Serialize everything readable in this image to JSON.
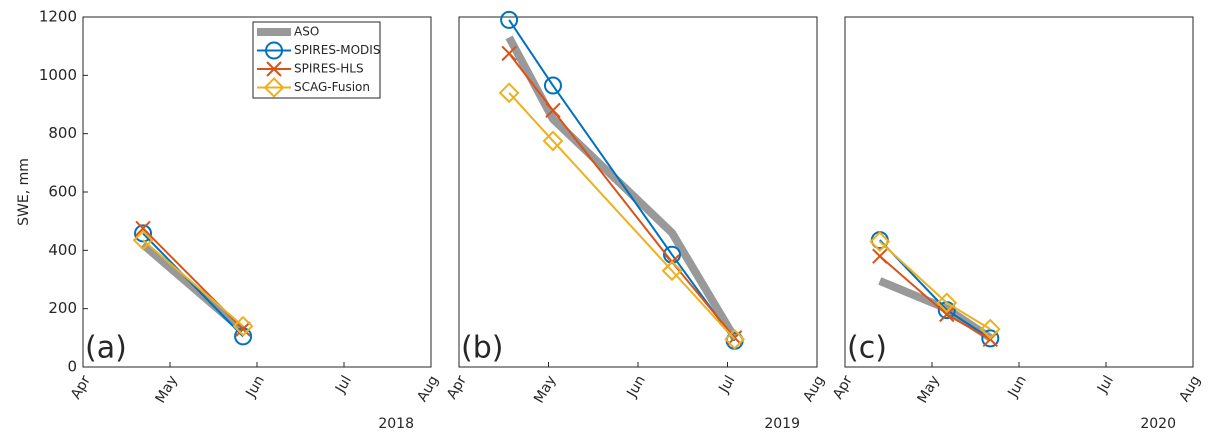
{
  "chart_data": [
    {
      "type": "line",
      "label": "(a)",
      "year": "2018",
      "ylabel": "SWE, mm",
      "x": [
        4.69,
        5.84
      ],
      "xlim": [
        4,
        8
      ],
      "xticks": [
        {
          "value": 4,
          "label": "Apr"
        },
        {
          "value": 5,
          "label": "May"
        },
        {
          "value": 6,
          "label": "Jun"
        },
        {
          "value": 7,
          "label": "Jul"
        },
        {
          "value": 8,
          "label": "Aug"
        }
      ],
      "ylim": [
        0,
        1200
      ],
      "yticks": [
        0,
        200,
        400,
        600,
        800,
        1000,
        1200
      ],
      "legend": "upper right",
      "series": [
        {
          "name": "ASO",
          "color": "#999999",
          "marker": "none",
          "values": [
            420,
            125
          ]
        },
        {
          "name": "SPIRES-MODIS",
          "color": "#0072bd",
          "marker": "o",
          "values": [
            458,
            105
          ]
        },
        {
          "name": "SPIRES-HLS",
          "color": "#d95319",
          "marker": "x",
          "values": [
            475,
            130
          ]
        },
        {
          "name": "SCAG-Fusion",
          "color": "#edb120",
          "marker": "d",
          "values": [
            435,
            140
          ]
        }
      ]
    },
    {
      "type": "line",
      "label": "(b)",
      "year": "2019",
      "x": [
        4.56,
        5.05,
        6.38,
        7.08
      ],
      "xlim": [
        4,
        8
      ],
      "xticks": [
        {
          "value": 4,
          "label": "Apr"
        },
        {
          "value": 5,
          "label": "May"
        },
        {
          "value": 6,
          "label": "Jun"
        },
        {
          "value": 7,
          "label": "Jul"
        },
        {
          "value": 8,
          "label": "Aug"
        }
      ],
      "ylim": [
        0,
        1200
      ],
      "series": [
        {
          "color": "#999999",
          "marker": "none",
          "values": [
            1130,
            850,
            460,
            100
          ]
        },
        {
          "color": "#0072bd",
          "marker": "o",
          "values": [
            1190,
            965,
            385,
            90
          ]
        },
        {
          "color": "#d95319",
          "marker": "x",
          "values": [
            1075,
            880,
            360,
            100
          ]
        },
        {
          "color": "#edb120",
          "marker": "d",
          "values": [
            940,
            775,
            330,
            95
          ]
        }
      ]
    },
    {
      "type": "line",
      "label": "(c)",
      "year": "2020",
      "x": [
        4.4,
        5.17,
        5.67
      ],
      "xlim": [
        4,
        8
      ],
      "xticks": [
        {
          "value": 4,
          "label": "Apr"
        },
        {
          "value": 5,
          "label": "May"
        },
        {
          "value": 6,
          "label": "Jun"
        },
        {
          "value": 7,
          "label": "Jul"
        },
        {
          "value": 8,
          "label": "Aug"
        }
      ],
      "ylim": [
        0,
        1200
      ],
      "series": [
        {
          "color": "#999999",
          "marker": "none",
          "values": [
            295,
            200,
            100
          ]
        },
        {
          "color": "#0072bd",
          "marker": "o",
          "values": [
            435,
            195,
            98
          ]
        },
        {
          "color": "#d95319",
          "marker": "x",
          "values": [
            380,
            180,
            95
          ]
        },
        {
          "color": "#edb120",
          "marker": "d",
          "values": [
            430,
            220,
            130
          ]
        }
      ]
    }
  ]
}
